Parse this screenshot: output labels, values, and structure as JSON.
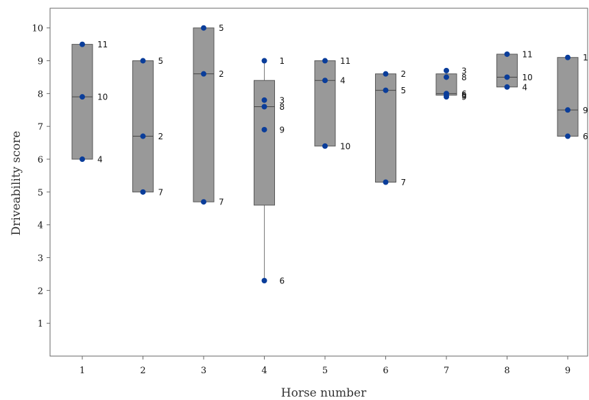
{
  "chart_data": {
    "type": "box",
    "title": "",
    "xlabel": "Horse number",
    "ylabel": "Driveability score",
    "ylim": [
      0,
      10.6
    ],
    "yticks": [
      1,
      2,
      3,
      4,
      5,
      6,
      7,
      8,
      9,
      10
    ],
    "grid": false,
    "box_fill": "#999999",
    "point_color": "#0a3d9a",
    "horses": [
      {
        "label": "1",
        "q1": 6.0,
        "median": 7.9,
        "q3": 9.5,
        "whisker_low": 6.0,
        "whisker_high": 9.5,
        "points": [
          {
            "id": "11",
            "y": 9.5
          },
          {
            "id": "10",
            "y": 7.9
          },
          {
            "id": "4",
            "y": 6.0
          }
        ]
      },
      {
        "label": "2",
        "q1": 5.0,
        "median": 6.7,
        "q3": 9.0,
        "whisker_low": 5.0,
        "whisker_high": 9.0,
        "points": [
          {
            "id": "5",
            "y": 9.0
          },
          {
            "id": "2",
            "y": 6.7
          },
          {
            "id": "7",
            "y": 5.0
          }
        ]
      },
      {
        "label": "3",
        "q1": 4.7,
        "median": 8.6,
        "q3": 10.0,
        "whisker_low": 4.7,
        "whisker_high": 10.0,
        "points": [
          {
            "id": "5",
            "y": 10.0
          },
          {
            "id": "2",
            "y": 8.6
          },
          {
            "id": "7",
            "y": 4.7
          }
        ]
      },
      {
        "label": "4",
        "q1": 4.6,
        "median": 7.6,
        "q3": 8.4,
        "whisker_low": 2.3,
        "whisker_high": 9.0,
        "points": [
          {
            "id": "1",
            "y": 9.0
          },
          {
            "id": "3",
            "y": 7.8
          },
          {
            "id": "8",
            "y": 7.6
          },
          {
            "id": "9",
            "y": 6.9
          },
          {
            "id": "6",
            "y": 2.3
          }
        ]
      },
      {
        "label": "5",
        "q1": 6.4,
        "median": 8.4,
        "q3": 9.0,
        "whisker_low": 6.4,
        "whisker_high": 9.0,
        "points": [
          {
            "id": "11",
            "y": 9.0
          },
          {
            "id": "4",
            "y": 8.4
          },
          {
            "id": "10",
            "y": 6.4
          }
        ]
      },
      {
        "label": "6",
        "q1": 5.3,
        "median": 8.1,
        "q3": 8.6,
        "whisker_low": 5.3,
        "whisker_high": 8.6,
        "points": [
          {
            "id": "2",
            "y": 8.6
          },
          {
            "id": "5",
            "y": 8.1
          },
          {
            "id": "7",
            "y": 5.3
          }
        ]
      },
      {
        "label": "7",
        "q1": 7.95,
        "median": 8.0,
        "q3": 8.6,
        "whisker_low": 7.9,
        "whisker_high": 8.7,
        "points": [
          {
            "id": "3",
            "y": 8.7
          },
          {
            "id": "8",
            "y": 8.5
          },
          {
            "id": "6",
            "y": 8.0
          },
          {
            "id": "5",
            "y": 7.95
          },
          {
            "id": "9",
            "y": 7.9
          }
        ]
      },
      {
        "label": "8",
        "q1": 8.2,
        "median": 8.5,
        "q3": 9.2,
        "whisker_low": 8.2,
        "whisker_high": 9.2,
        "points": [
          {
            "id": "11",
            "y": 9.2
          },
          {
            "id": "10",
            "y": 8.5
          },
          {
            "id": "4",
            "y": 8.2
          }
        ]
      },
      {
        "label": "9",
        "q1": 6.7,
        "median": 7.5,
        "q3": 9.1,
        "whisker_low": 6.7,
        "whisker_high": 9.1,
        "points": [
          {
            "id": "1",
            "y": 9.1
          },
          {
            "id": "9",
            "y": 7.5
          },
          {
            "id": "6",
            "y": 6.7
          }
        ]
      }
    ]
  }
}
